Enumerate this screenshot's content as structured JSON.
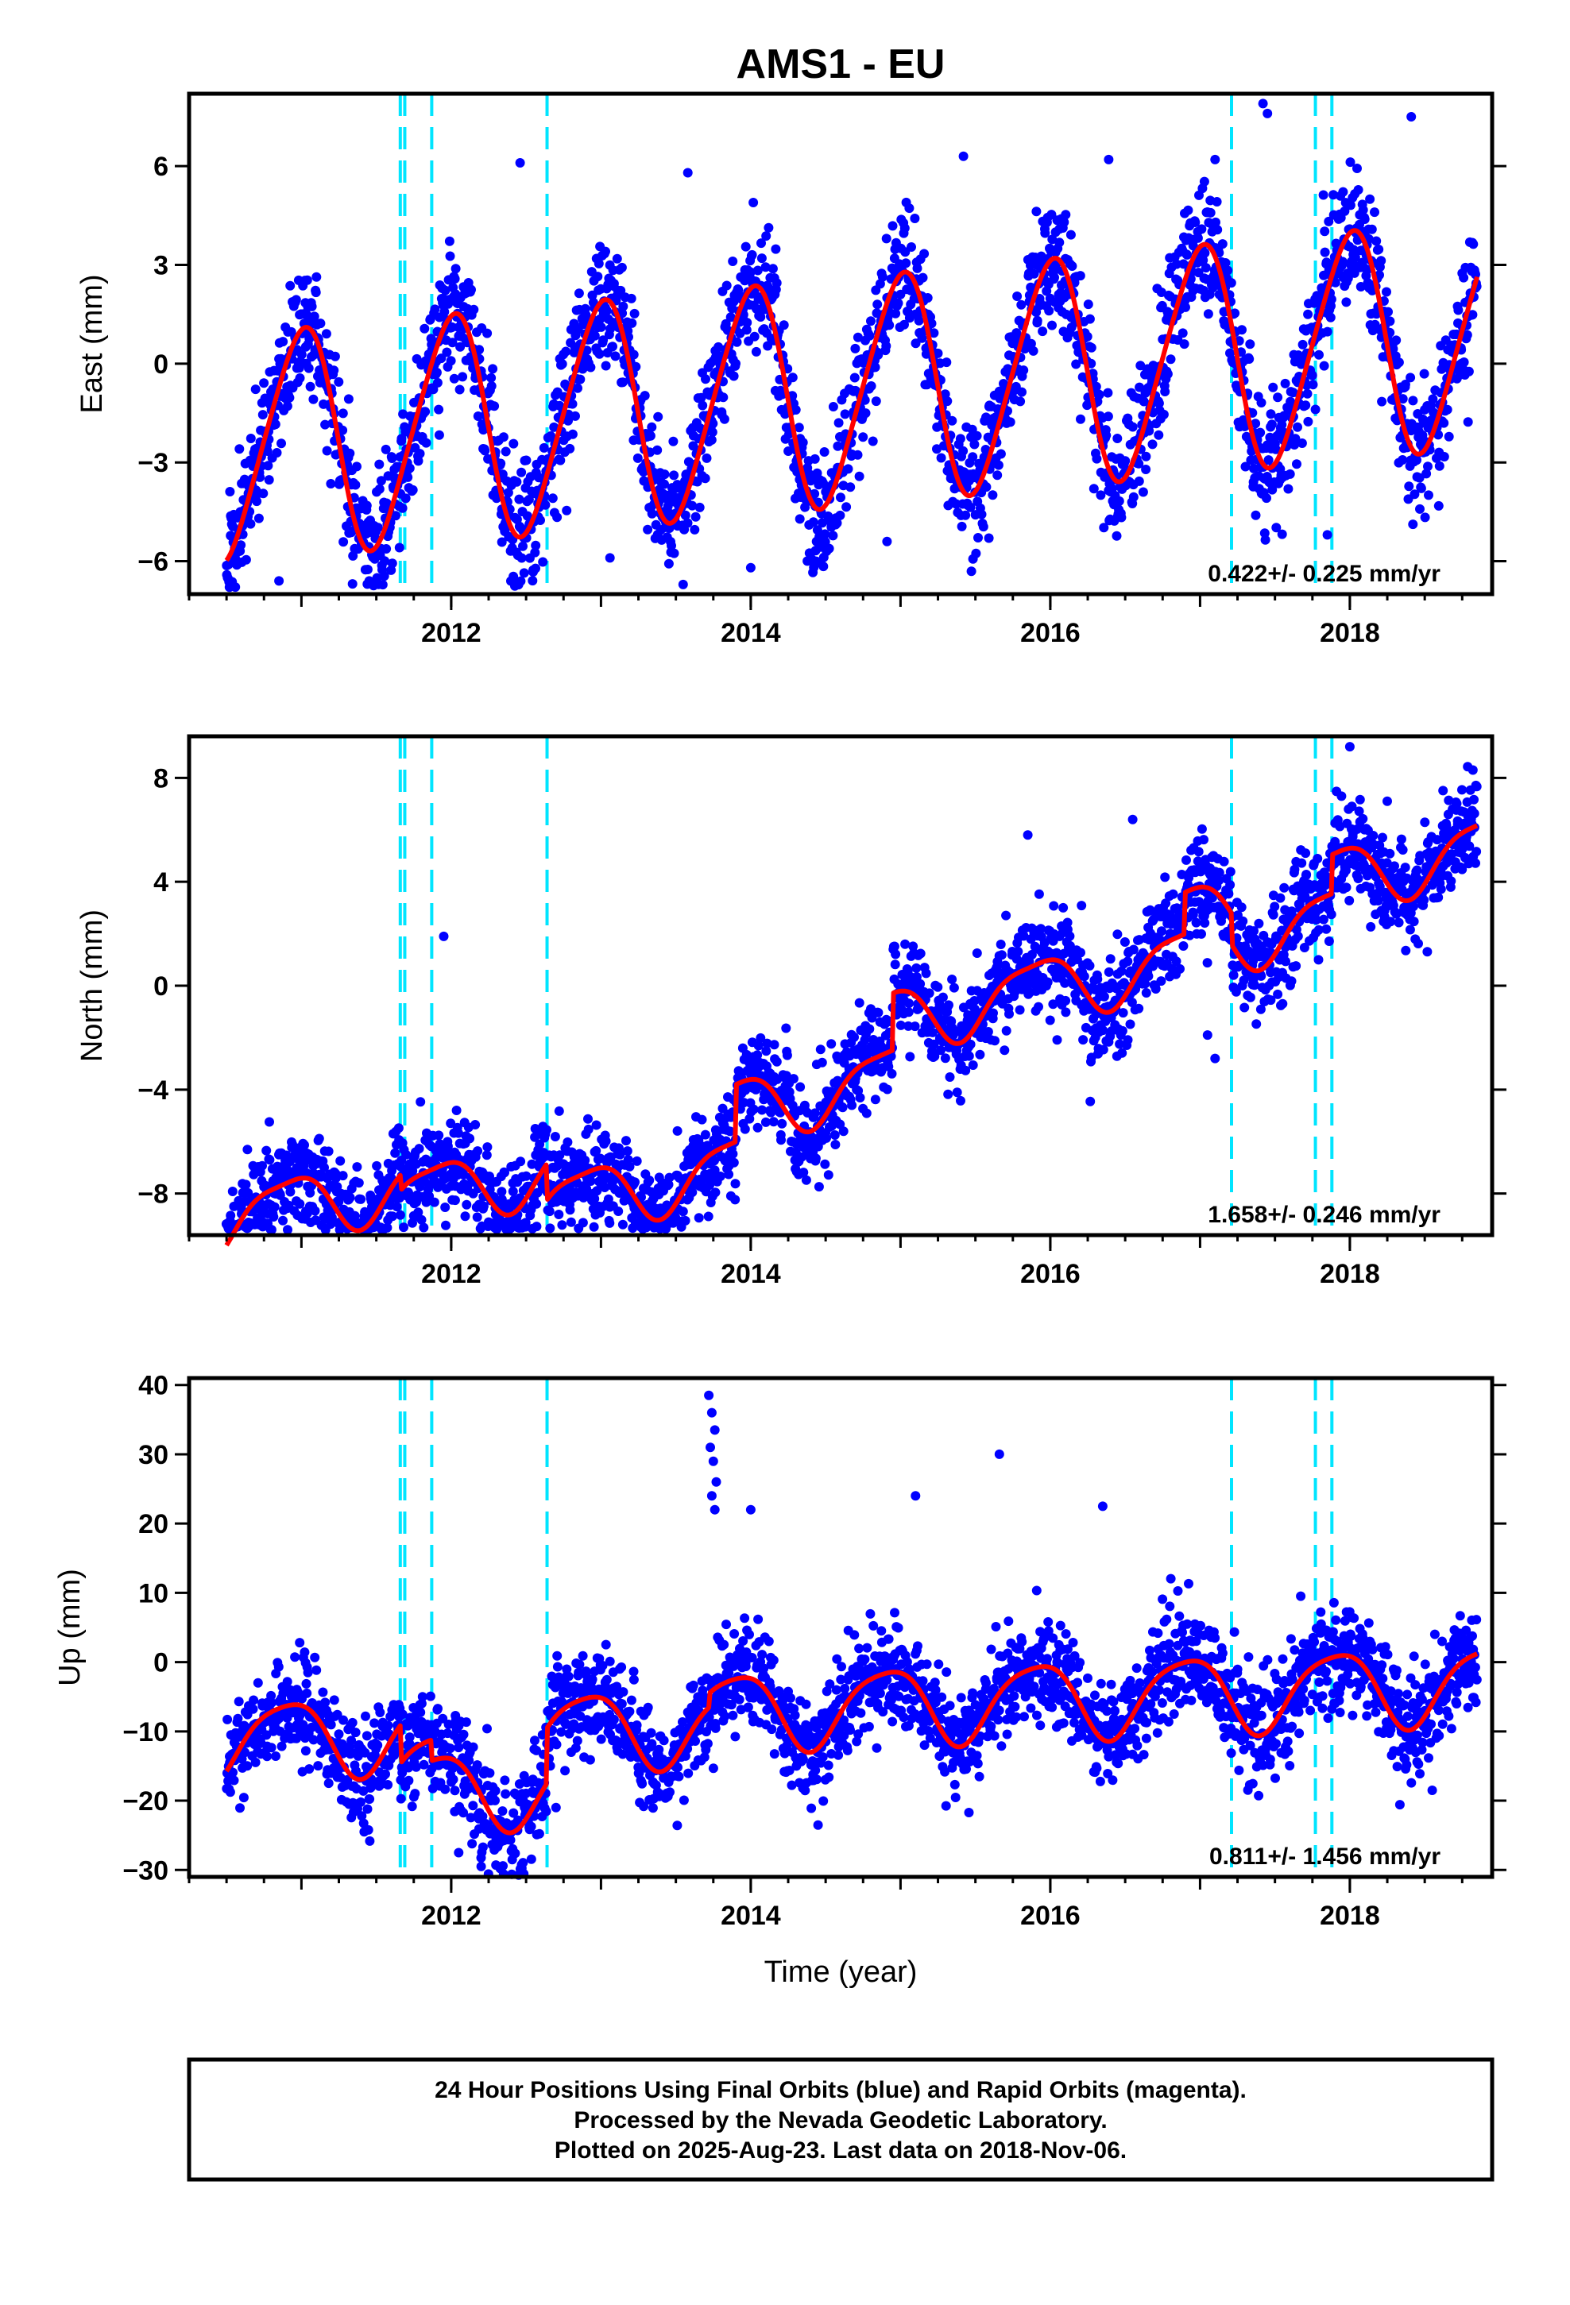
{
  "title": "AMS1 - EU",
  "x_label": "Time (year)",
  "x_ticks": [
    "2012",
    "2014",
    "2016",
    "2018"
  ],
  "colors": {
    "final_orbit_points": "#0000ff",
    "model_line": "#ff0000",
    "event_lines": "#00e5ff",
    "axes": "#000000"
  },
  "footer": {
    "line1": "24 Hour Positions Using Final Orbits (blue) and Rapid Orbits (magenta).",
    "line2": "Processed by the Nevada Geodetic Laboratory.",
    "line3": "Plotted on 2025-Aug-23. Last data on 2018-Nov-06."
  },
  "chart_data": [
    {
      "type": "scatter",
      "title": "AMS1 - EU",
      "ylabel": "East (mm)",
      "xlabel": "",
      "xlim": [
        2010.25,
        2018.95
      ],
      "ylim": [
        -7.0,
        8.2
      ],
      "y_ticks": [
        6,
        3,
        0,
        -3,
        -6
      ],
      "y_tick_labels": [
        "6",
        "3",
        "0",
        "−3",
        "−6"
      ],
      "x_ticks": [
        2012,
        2014,
        2016,
        2018
      ],
      "rate_label": "0.422+/- 0.225 mm/yr",
      "event_lines": [
        2011.66,
        2011.69,
        2011.87,
        2012.64,
        2017.21,
        2017.77,
        2017.88
      ],
      "data_range": [
        2010.5,
        2018.85
      ],
      "model": {
        "trend": 0.42,
        "offset": -0.9,
        "annual_amp": 3.4,
        "semiannual_amp": 0.4,
        "annual_phase": -0.09,
        "steps": []
      },
      "noise": 0.95,
      "outliers": [
        [
          2017.42,
          7.9
        ],
        [
          2017.45,
          7.6
        ],
        [
          2018.41,
          7.5
        ],
        [
          2012.46,
          6.1
        ],
        [
          2013.58,
          5.8
        ],
        [
          2015.42,
          6.3
        ],
        [
          2016.39,
          6.2
        ],
        [
          2017.1,
          6.2
        ],
        [
          2017.85,
          -5.2
        ],
        [
          2014.0,
          -6.2
        ],
        [
          2015.59,
          -5.3
        ],
        [
          2014.91,
          -5.4
        ],
        [
          2010.85,
          -6.6
        ],
        [
          2013.06,
          -5.9
        ],
        [
          2017.72,
          1.5
        ]
      ]
    },
    {
      "type": "scatter",
      "ylabel": "North (mm)",
      "xlabel": "",
      "xlim": [
        2010.25,
        2018.95
      ],
      "ylim": [
        -9.6,
        9.6
      ],
      "y_ticks": [
        8,
        4,
        0,
        -4,
        -8
      ],
      "y_tick_labels": [
        "8",
        "4",
        "0",
        "−4",
        "−8"
      ],
      "x_ticks": [
        2012,
        2014,
        2016,
        2018
      ],
      "rate_label": "1.658+/- 0.246 mm/yr",
      "event_lines": [
        2011.66,
        2011.69,
        2011.87,
        2012.64,
        2017.21,
        2017.77,
        2017.88
      ],
      "data_range": [
        2010.5,
        2018.85
      ],
      "model": {
        "trend": 1.2,
        "offset": -4.2,
        "annual_amp": 1.2,
        "semiannual_amp": 0.3,
        "annual_phase": 0.0,
        "steps": [
          [
            2011.66,
            -0.6
          ],
          [
            2012.64,
            -1.4
          ],
          [
            2013.9,
            2.2
          ],
          [
            2014.95,
            2.2
          ],
          [
            2016.9,
            1.6
          ],
          [
            2017.21,
            -1.2
          ],
          [
            2017.88,
            1.5
          ]
        ]
      },
      "noise": 0.95,
      "outliers": [
        [
          2018.0,
          9.2
        ],
        [
          2011.95,
          1.9
        ],
        [
          2012.25,
          -9.1
        ],
        [
          2017.1,
          -2.8
        ],
        [
          2017.05,
          -1.9
        ],
        [
          2018.25,
          7.1
        ],
        [
          2016.55,
          6.4
        ],
        [
          2015.85,
          5.8
        ],
        [
          2018.65,
          6.0
        ]
      ]
    },
    {
      "type": "scatter",
      "ylabel": "Up (mm)",
      "xlabel": "Time (year)",
      "xlim": [
        2010.25,
        2018.95
      ],
      "ylim": [
        -31,
        41
      ],
      "y_ticks": [
        40,
        30,
        20,
        10,
        0,
        -10,
        -20,
        -30
      ],
      "y_tick_labels": [
        "40",
        "30",
        "20",
        "10",
        "0",
        "−10",
        "−20",
        "−30"
      ],
      "x_ticks": [
        2012,
        2014,
        2016,
        2018
      ],
      "rate_label": "0.811+/- 1.456 mm/yr",
      "event_lines": [
        2011.66,
        2011.69,
        2011.87,
        2012.64,
        2017.21,
        2017.77,
        2017.88
      ],
      "data_range": [
        2010.5,
        2018.85
      ],
      "model": {
        "trend": 0.8,
        "offset": -8.0,
        "annual_amp": 5.5,
        "semiannual_amp": 1.0,
        "annual_phase": 0.0,
        "steps": [
          [
            2011.66,
            -5.5
          ],
          [
            2011.87,
            -3.0
          ],
          [
            2012.64,
            8.0
          ],
          [
            2013.72,
            2.0
          ]
        ]
      },
      "noise": 3.6,
      "outliers": [
        [
          2013.72,
          38.5
        ],
        [
          2013.74,
          36.0
        ],
        [
          2013.76,
          33.5
        ],
        [
          2013.73,
          31.0
        ],
        [
          2013.75,
          29.0
        ],
        [
          2013.77,
          26.0
        ],
        [
          2013.74,
          24.0
        ],
        [
          2013.76,
          22.0
        ],
        [
          2015.66,
          30.0
        ],
        [
          2015.1,
          24.0
        ],
        [
          2016.35,
          22.5
        ],
        [
          2018.55,
          -18.5
        ],
        [
          2012.2,
          -29.5
        ],
        [
          2012.05,
          -27.5
        ],
        [
          2014.0,
          22.0
        ],
        [
          2012.7,
          -21.0
        ]
      ]
    }
  ]
}
